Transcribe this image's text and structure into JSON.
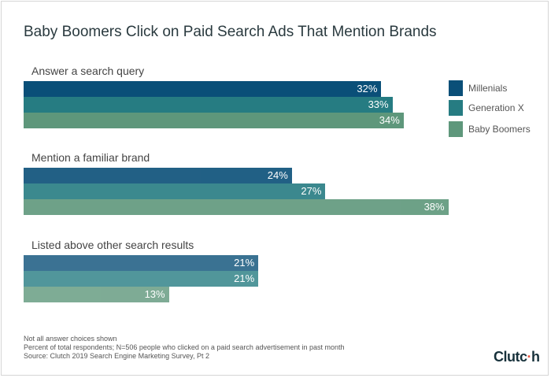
{
  "chart_data": {
    "type": "bar",
    "orientation": "horizontal",
    "title": "Baby Boomers Click on Paid Search Ads That Mention Brands",
    "categories": [
      "Answer a search query",
      "Mention a familiar brand",
      "Listed above other search results"
    ],
    "series": [
      {
        "name": "Millenials",
        "values": [
          32,
          24,
          21
        ],
        "color": "#0a4f78"
      },
      {
        "name": "Generation X",
        "values": [
          33,
          27,
          21
        ],
        "color": "#267c82"
      },
      {
        "name": "Baby Boomers",
        "values": [
          34,
          38,
          13
        ],
        "color": "#5e977b"
      }
    ],
    "value_suffix": "%",
    "legend": "right",
    "grid": false
  },
  "notes": [
    "Not all answer choices shown",
    "Percent of total respondents; N=506 people who clicked on a paid search advertisement in past month",
    "Source: Clutch 2019 Search Engine Marketing Survey, Pt 2"
  ],
  "logo": "Clutch"
}
